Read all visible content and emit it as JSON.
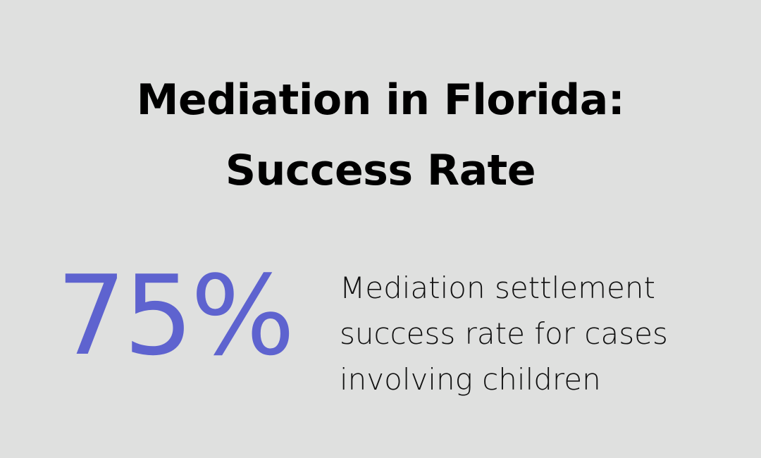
{
  "title": {
    "line1": "Mediation in Florida:",
    "line2": "Success Rate"
  },
  "stat": {
    "value": "75%",
    "color": "#5e63cf"
  },
  "description": {
    "line1": "Mediation settlement",
    "line2": "success rate for cases",
    "line3": "involving children"
  },
  "colors": {
    "background": "#dfe0df"
  }
}
